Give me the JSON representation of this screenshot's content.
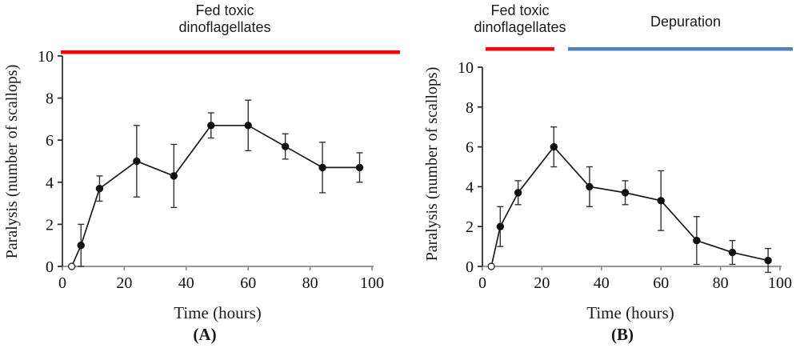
{
  "chart_data": [
    {
      "type": "line",
      "panel": "A",
      "caption": "(A)",
      "xlabel": "Time (hours)",
      "ylabel": "Paralysis (number of scallops)",
      "xlim": [
        0,
        100
      ],
      "ylim": [
        0,
        10
      ],
      "xticks": [
        0,
        20,
        40,
        60,
        80,
        100
      ],
      "yticks": [
        0,
        2,
        4,
        6,
        8,
        10
      ],
      "grid": false,
      "legend": "none",
      "x": [
        3,
        6,
        12,
        24,
        36,
        48,
        60,
        72,
        84,
        96
      ],
      "values": [
        0,
        1.0,
        3.7,
        5.0,
        4.3,
        6.7,
        6.7,
        5.7,
        4.7,
        4.7
      ],
      "errors": [
        0,
        1.0,
        0.6,
        1.7,
        1.5,
        0.6,
        1.2,
        0.6,
        1.2,
        0.7
      ],
      "first_point_open_marker": true,
      "line_color": "#1a1a1a",
      "marker_color": "#111111",
      "error_bar_color": "#333333",
      "annotation_bars": [
        {
          "label_line1": "Fed toxic",
          "label_line2": "dinoflagellates",
          "color": "#ff0000"
        }
      ]
    },
    {
      "type": "line",
      "panel": "B",
      "caption": "(B)",
      "xlabel": "Time (hours)",
      "ylabel": "Paralysis (number of scallops)",
      "xlim": [
        0,
        100
      ],
      "ylim": [
        0,
        10
      ],
      "xticks": [
        0,
        20,
        40,
        60,
        80,
        100
      ],
      "yticks": [
        0,
        2,
        4,
        6,
        8,
        10
      ],
      "grid": false,
      "legend": "none",
      "x": [
        3,
        6,
        12,
        24,
        36,
        48,
        60,
        72,
        84,
        96
      ],
      "values": [
        0,
        2.0,
        3.7,
        6.0,
        4.0,
        3.7,
        3.3,
        1.3,
        0.7,
        0.3
      ],
      "errors": [
        0,
        1.0,
        0.6,
        1.0,
        1.0,
        0.6,
        1.5,
        1.2,
        0.6,
        0.6
      ],
      "first_point_open_marker": true,
      "line_color": "#1a1a1a",
      "marker_color": "#111111",
      "error_bar_color": "#333333",
      "annotation_bars": [
        {
          "label_line1": "Fed toxic",
          "label_line2": "dinoflagellates",
          "color": "#ff0000"
        },
        {
          "label_line1": "Depuration",
          "label_line2": "",
          "color": "#4f81bd"
        }
      ]
    }
  ],
  "axis_style": {
    "x_axis_color": "#8c8c8c",
    "y_axis_color": "#262626",
    "tick_label_color": "#111111"
  }
}
